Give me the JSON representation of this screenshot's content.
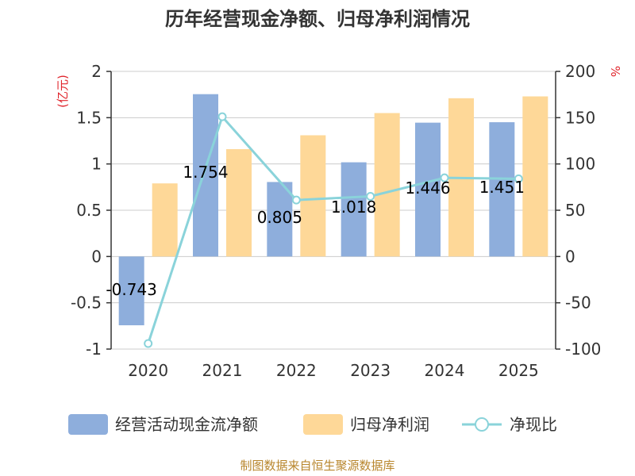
{
  "chart_data": {
    "type": "bar+line",
    "title": "历年经营现金净额、归母净利润情况",
    "categories": [
      "2020",
      "2021",
      "2022",
      "2023",
      "2024",
      "2025"
    ],
    "left_axis": {
      "unit": "(亿元)",
      "ylim": [
        -1,
        2
      ],
      "ticks": [
        "2",
        "1.5",
        "1",
        "0.5",
        "0",
        "-0.5",
        "-1"
      ],
      "tick_values": [
        2,
        1.5,
        1,
        0.5,
        0,
        -0.5,
        -1
      ]
    },
    "right_axis": {
      "unit": "%",
      "ylim": [
        -100,
        200
      ],
      "ticks": [
        "200",
        "150",
        "100",
        "50",
        "0",
        "-50",
        "-100"
      ],
      "tick_values": [
        200,
        150,
        100,
        50,
        0,
        -50,
        -100
      ]
    },
    "series": [
      {
        "name": "经营活动现金流净额",
        "type": "bar",
        "axis": "left",
        "color": "#8eaedc",
        "values": [
          -0.743,
          1.754,
          0.805,
          1.018,
          1.446,
          1.451
        ],
        "labels": [
          "-0.743",
          "1.754",
          "0.805",
          "1.018",
          "1.446",
          "1.451"
        ]
      },
      {
        "name": "归母净利润",
        "type": "bar",
        "axis": "left",
        "color": "#fed898",
        "values": [
          0.79,
          1.16,
          1.31,
          1.55,
          1.71,
          1.73
        ]
      },
      {
        "name": "净现比",
        "type": "line",
        "axis": "right",
        "color": "#8ad3da",
        "values": [
          -94,
          151,
          61,
          65,
          85,
          84
        ]
      }
    ],
    "source": "制图数据来自恒生聚源数据库",
    "colors": {
      "left_unit": "#e0242b",
      "right_unit": "#e0242b",
      "source": "#b8862d"
    }
  }
}
